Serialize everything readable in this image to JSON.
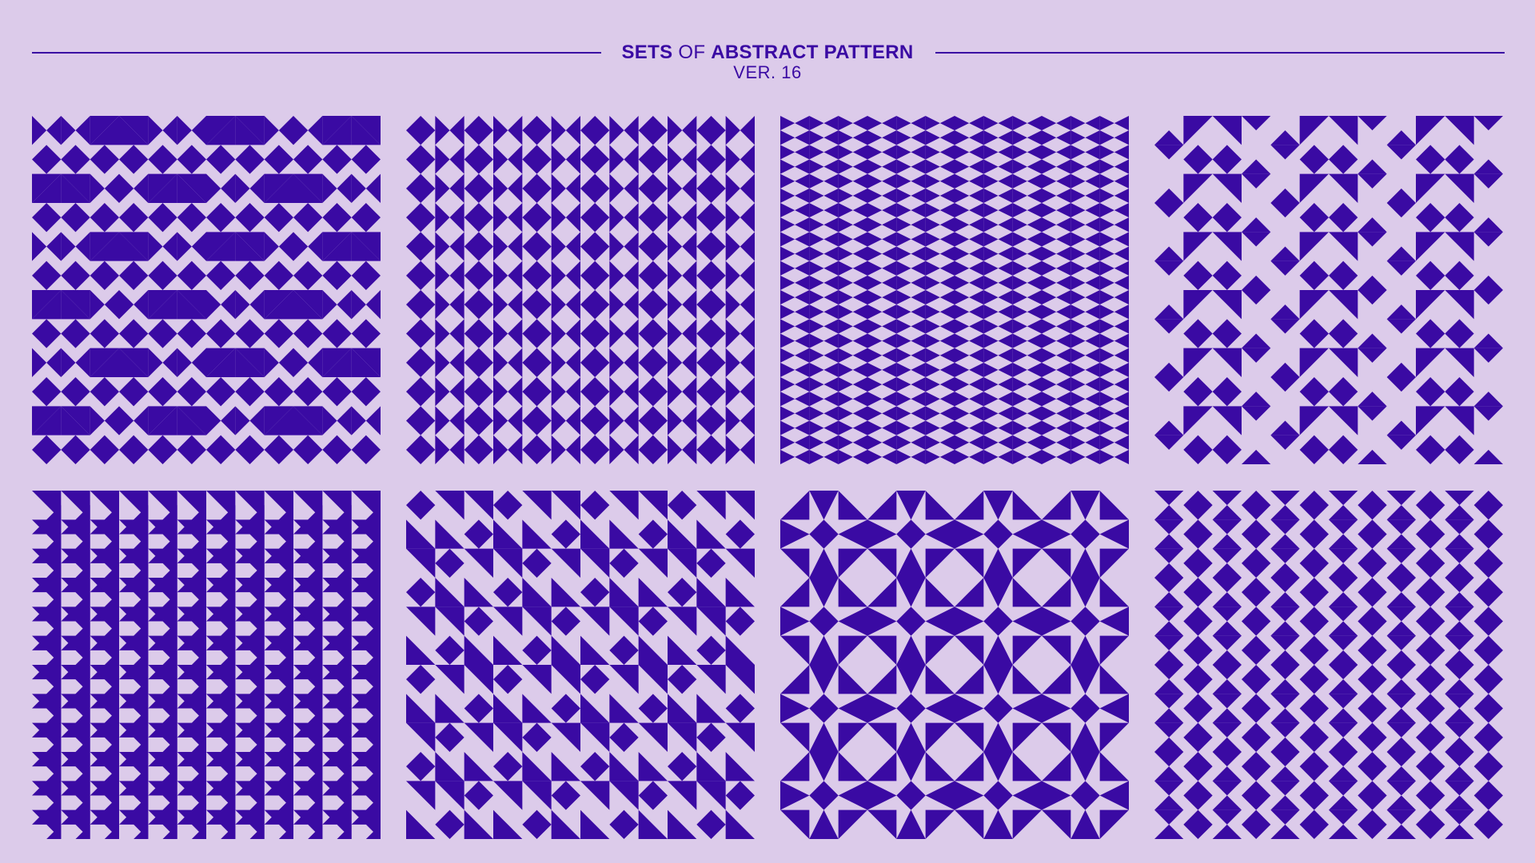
{
  "title": {
    "part1": "SETS",
    "part2": "OF",
    "part3": "ABSTRACT PATTERN",
    "subtitle": "VER. 16"
  },
  "colors": {
    "background": "#dccbea",
    "ink": "#3a0aa3",
    "light": "#dccbea"
  },
  "patterns": [
    {
      "name": "pattern-1",
      "grid": 12,
      "style": "mosaic"
    },
    {
      "name": "pattern-2",
      "grid": 12,
      "style": "diamond-columns"
    },
    {
      "name": "pattern-3",
      "grid": 24,
      "style": "triangle-stripes"
    },
    {
      "name": "pattern-4",
      "grid": 12,
      "style": "ribbon-diamonds"
    },
    {
      "name": "pattern-5",
      "grid": 12,
      "style": "zigzag"
    },
    {
      "name": "pattern-6",
      "grid": 12,
      "style": "zigzag-diamonds"
    },
    {
      "name": "pattern-7",
      "grid": 12,
      "style": "star-diamonds"
    },
    {
      "name": "pattern-8",
      "grid": 12,
      "style": "hourglass-columns"
    }
  ]
}
